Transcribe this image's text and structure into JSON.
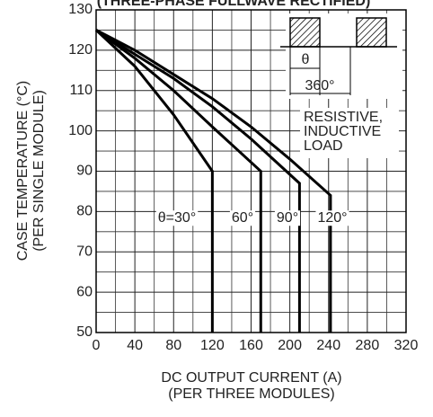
{
  "chart_data": {
    "type": "line",
    "title": "(THREE-PHASE FULLWAVE RECTIFIED)",
    "xlabel": [
      "DC OUTPUT CURRENT (A)",
      "(PER THREE MODULES)"
    ],
    "ylabel": [
      "CASE TEMPERATURE (°C)",
      "(PER SINGLE MODULE)"
    ],
    "xlim": [
      0,
      320
    ],
    "xticks": [
      0,
      40,
      80,
      120,
      160,
      200,
      240,
      280,
      320
    ],
    "ylim": [
      50,
      130
    ],
    "yticks": [
      50,
      60,
      70,
      80,
      90,
      100,
      110,
      120,
      130
    ],
    "grid": true,
    "series": [
      {
        "name": "θ=30°",
        "color": "#000000",
        "x": [
          0,
          40,
          80,
          120,
          120
        ],
        "values": [
          125,
          116,
          104,
          90,
          50
        ]
      },
      {
        "name": "60°",
        "color": "#000000",
        "x": [
          0,
          40,
          80,
          120,
          170,
          170
        ],
        "values": [
          125,
          118,
          110,
          101,
          90,
          50
        ]
      },
      {
        "name": "90°",
        "color": "#000000",
        "x": [
          0,
          40,
          80,
          120,
          160,
          210,
          210
        ],
        "values": [
          125,
          119,
          113,
          106,
          98,
          87,
          50
        ]
      },
      {
        "name": "120°",
        "color": "#000000",
        "x": [
          0,
          40,
          80,
          120,
          160,
          200,
          242,
          242
        ],
        "values": [
          125,
          120,
          114,
          108,
          101,
          93,
          84,
          50
        ]
      }
    ],
    "annotations": [
      "RESISTIVE,",
      "INDUCTIVE",
      "LOAD",
      "θ",
      "360°"
    ]
  }
}
